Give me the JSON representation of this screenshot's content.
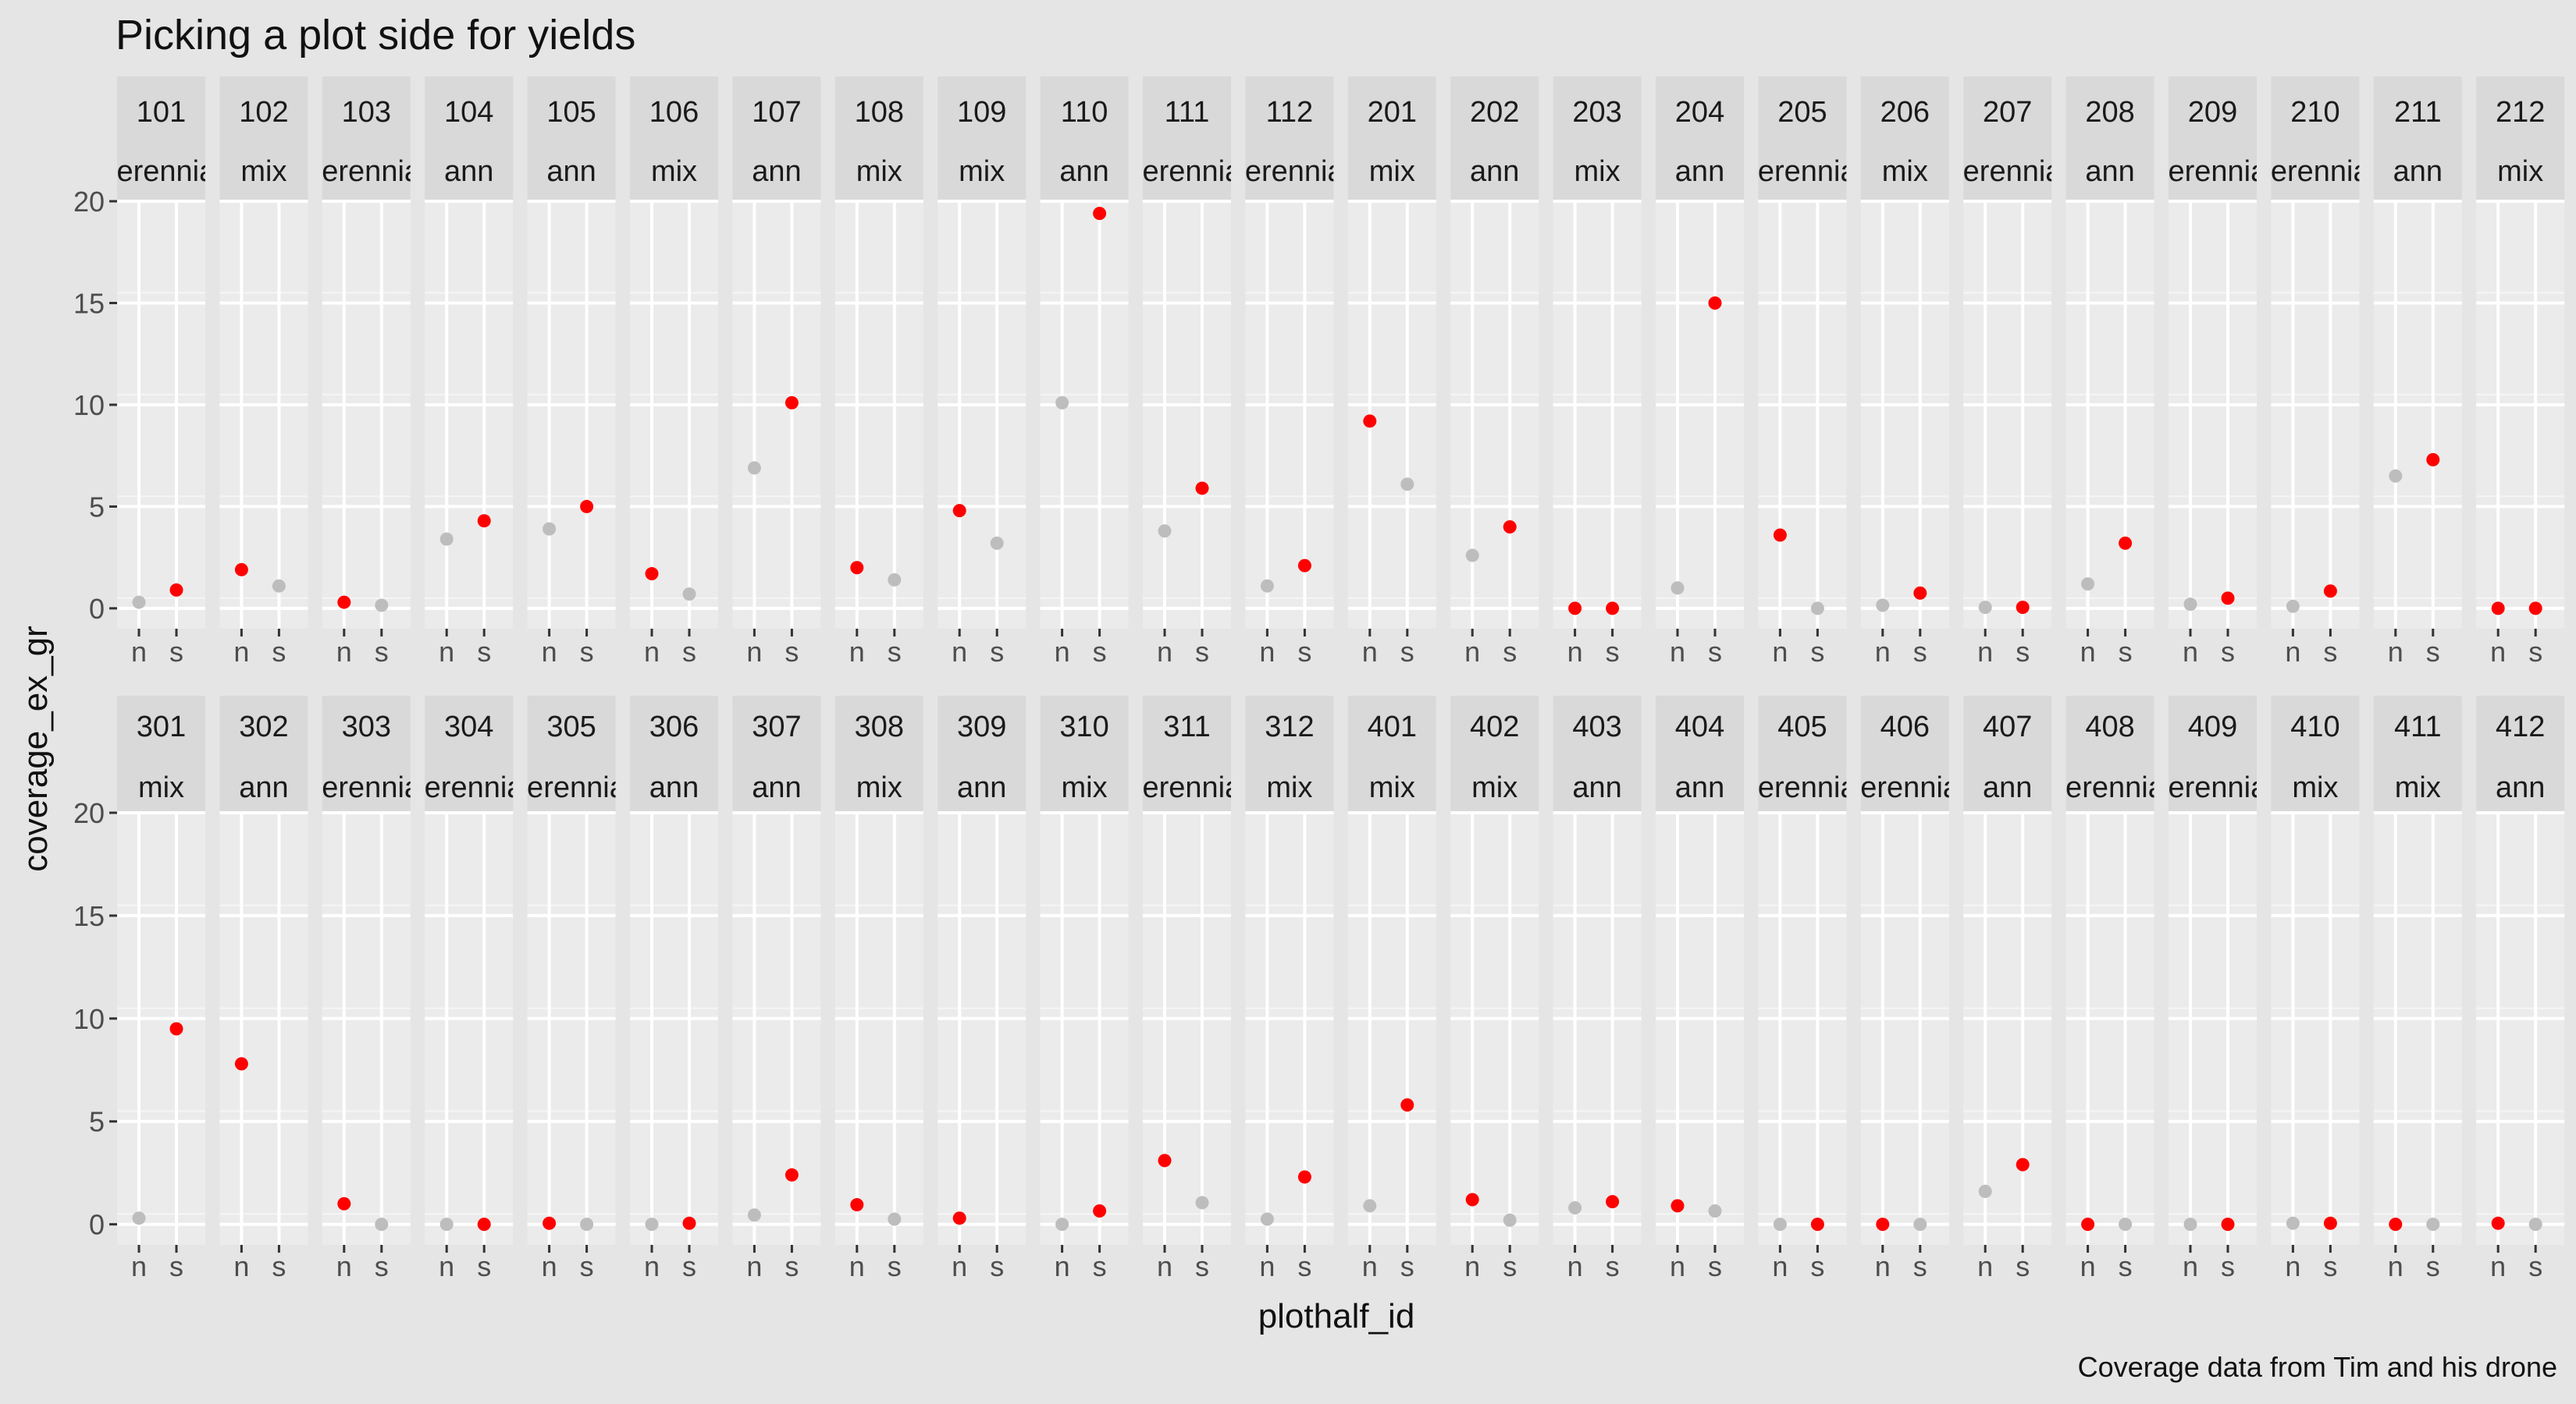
{
  "chart_data": {
    "type": "scatter",
    "title": "Picking a plot side for yields",
    "xlabel": "plothalf_id",
    "ylabel": "coverage_ex_gr",
    "caption": "Coverage data from Tim and his drone",
    "x_categories": [
      "n",
      "s"
    ],
    "ylim": [
      -1,
      20
    ],
    "y_ticks": [
      0,
      5,
      10,
      15,
      20
    ],
    "grid": true,
    "colors": {
      "selected": "#ff0000",
      "other": "#bdbdbd"
    },
    "panels": [
      {
        "plot": "101",
        "treatment": "perennial",
        "n": 0.3,
        "s": 0.9,
        "selected": "s"
      },
      {
        "plot": "102",
        "treatment": "mix",
        "n": 1.9,
        "s": 1.1,
        "selected": "n"
      },
      {
        "plot": "103",
        "treatment": "perennial",
        "n": 0.3,
        "s": 0.15,
        "selected": "n"
      },
      {
        "plot": "104",
        "treatment": "ann",
        "n": 3.4,
        "s": 4.3,
        "selected": "s"
      },
      {
        "plot": "105",
        "treatment": "ann",
        "n": 3.9,
        "s": 5.0,
        "selected": "s"
      },
      {
        "plot": "106",
        "treatment": "mix",
        "n": 1.7,
        "s": 0.7,
        "selected": "n"
      },
      {
        "plot": "107",
        "treatment": "ann",
        "n": 6.9,
        "s": 10.1,
        "selected": "s"
      },
      {
        "plot": "108",
        "treatment": "mix",
        "n": 2.0,
        "s": 1.4,
        "selected": "n"
      },
      {
        "plot": "109",
        "treatment": "mix",
        "n": 4.8,
        "s": 3.2,
        "selected": "n"
      },
      {
        "plot": "110",
        "treatment": "ann",
        "n": 10.1,
        "s": 19.4,
        "selected": "s"
      },
      {
        "plot": "111",
        "treatment": "perennial",
        "n": 3.8,
        "s": 5.9,
        "selected": "s"
      },
      {
        "plot": "112",
        "treatment": "perennial",
        "n": 1.1,
        "s": 2.1,
        "selected": "s"
      },
      {
        "plot": "201",
        "treatment": "mix",
        "n": 9.2,
        "s": 6.1,
        "selected": "n"
      },
      {
        "plot": "202",
        "treatment": "ann",
        "n": 2.6,
        "s": 4.0,
        "selected": "s"
      },
      {
        "plot": "203",
        "treatment": "mix",
        "n": 0.0,
        "s": 0.0,
        "selected": "both"
      },
      {
        "plot": "204",
        "treatment": "ann",
        "n": 1.0,
        "s": 15.0,
        "selected": "s"
      },
      {
        "plot": "205",
        "treatment": "perennial",
        "n": 3.6,
        "s": 0.0,
        "selected": "n"
      },
      {
        "plot": "206",
        "treatment": "mix",
        "n": 0.15,
        "s": 0.75,
        "selected": "s"
      },
      {
        "plot": "207",
        "treatment": "perennial",
        "n": 0.05,
        "s": 0.05,
        "selected": "s"
      },
      {
        "plot": "208",
        "treatment": "ann",
        "n": 1.2,
        "s": 3.2,
        "selected": "s"
      },
      {
        "plot": "209",
        "treatment": "perennial",
        "n": 0.2,
        "s": 0.5,
        "selected": "s"
      },
      {
        "plot": "210",
        "treatment": "perennial",
        "n": 0.1,
        "s": 0.85,
        "selected": "s"
      },
      {
        "plot": "211",
        "treatment": "ann",
        "n": 6.5,
        "s": 7.3,
        "selected": "s"
      },
      {
        "plot": "212",
        "treatment": "mix",
        "n": 0.0,
        "s": 0.0,
        "selected": "both"
      },
      {
        "plot": "301",
        "treatment": "mix",
        "n": 0.3,
        "s": 9.5,
        "selected": "s"
      },
      {
        "plot": "302",
        "treatment": "ann",
        "n": 7.8,
        "s": null,
        "selected": "n"
      },
      {
        "plot": "303",
        "treatment": "perennial",
        "n": 1.0,
        "s": 0.0,
        "selected": "n"
      },
      {
        "plot": "304",
        "treatment": "perennial",
        "n": 0.0,
        "s": 0.0,
        "selected": "s"
      },
      {
        "plot": "305",
        "treatment": "perennial",
        "n": 0.05,
        "s": 0.0,
        "selected": "n"
      },
      {
        "plot": "306",
        "treatment": "ann",
        "n": 0.0,
        "s": 0.05,
        "selected": "s"
      },
      {
        "plot": "307",
        "treatment": "ann",
        "n": 0.45,
        "s": 2.4,
        "selected": "s"
      },
      {
        "plot": "308",
        "treatment": "mix",
        "n": 0.95,
        "s": 0.25,
        "selected": "n"
      },
      {
        "plot": "309",
        "treatment": "ann",
        "n": 0.3,
        "s": null,
        "selected": "n"
      },
      {
        "plot": "310",
        "treatment": "mix",
        "n": 0.0,
        "s": 0.65,
        "selected": "s"
      },
      {
        "plot": "311",
        "treatment": "perennial",
        "n": 3.1,
        "s": 1.05,
        "selected": "n"
      },
      {
        "plot": "312",
        "treatment": "mix",
        "n": 0.25,
        "s": 2.3,
        "selected": "s"
      },
      {
        "plot": "401",
        "treatment": "mix",
        "n": 0.9,
        "s": 5.8,
        "selected": "s"
      },
      {
        "plot": "402",
        "treatment": "mix",
        "n": 1.2,
        "s": 0.2,
        "selected": "n"
      },
      {
        "plot": "403",
        "treatment": "ann",
        "n": 0.8,
        "s": 1.1,
        "selected": "s"
      },
      {
        "plot": "404",
        "treatment": "ann",
        "n": 0.9,
        "s": 0.65,
        "selected": "n"
      },
      {
        "plot": "405",
        "treatment": "perennial",
        "n": 0.0,
        "s": 0.0,
        "selected": "s"
      },
      {
        "plot": "406",
        "treatment": "perennial",
        "n": 0.0,
        "s": 0.0,
        "selected": "n"
      },
      {
        "plot": "407",
        "treatment": "ann",
        "n": 1.6,
        "s": 2.9,
        "selected": "s"
      },
      {
        "plot": "408",
        "treatment": "perennial",
        "n": 0.0,
        "s": 0.0,
        "selected": "n"
      },
      {
        "plot": "409",
        "treatment": "perennial",
        "n": 0.0,
        "s": 0.0,
        "selected": "s"
      },
      {
        "plot": "410",
        "treatment": "mix",
        "n": 0.05,
        "s": 0.05,
        "selected": "s"
      },
      {
        "plot": "411",
        "treatment": "mix",
        "n": 0.0,
        "s": 0.0,
        "selected": "n"
      },
      {
        "plot": "412",
        "treatment": "ann",
        "n": 0.05,
        "s": 0.0,
        "selected": "n"
      }
    ]
  }
}
